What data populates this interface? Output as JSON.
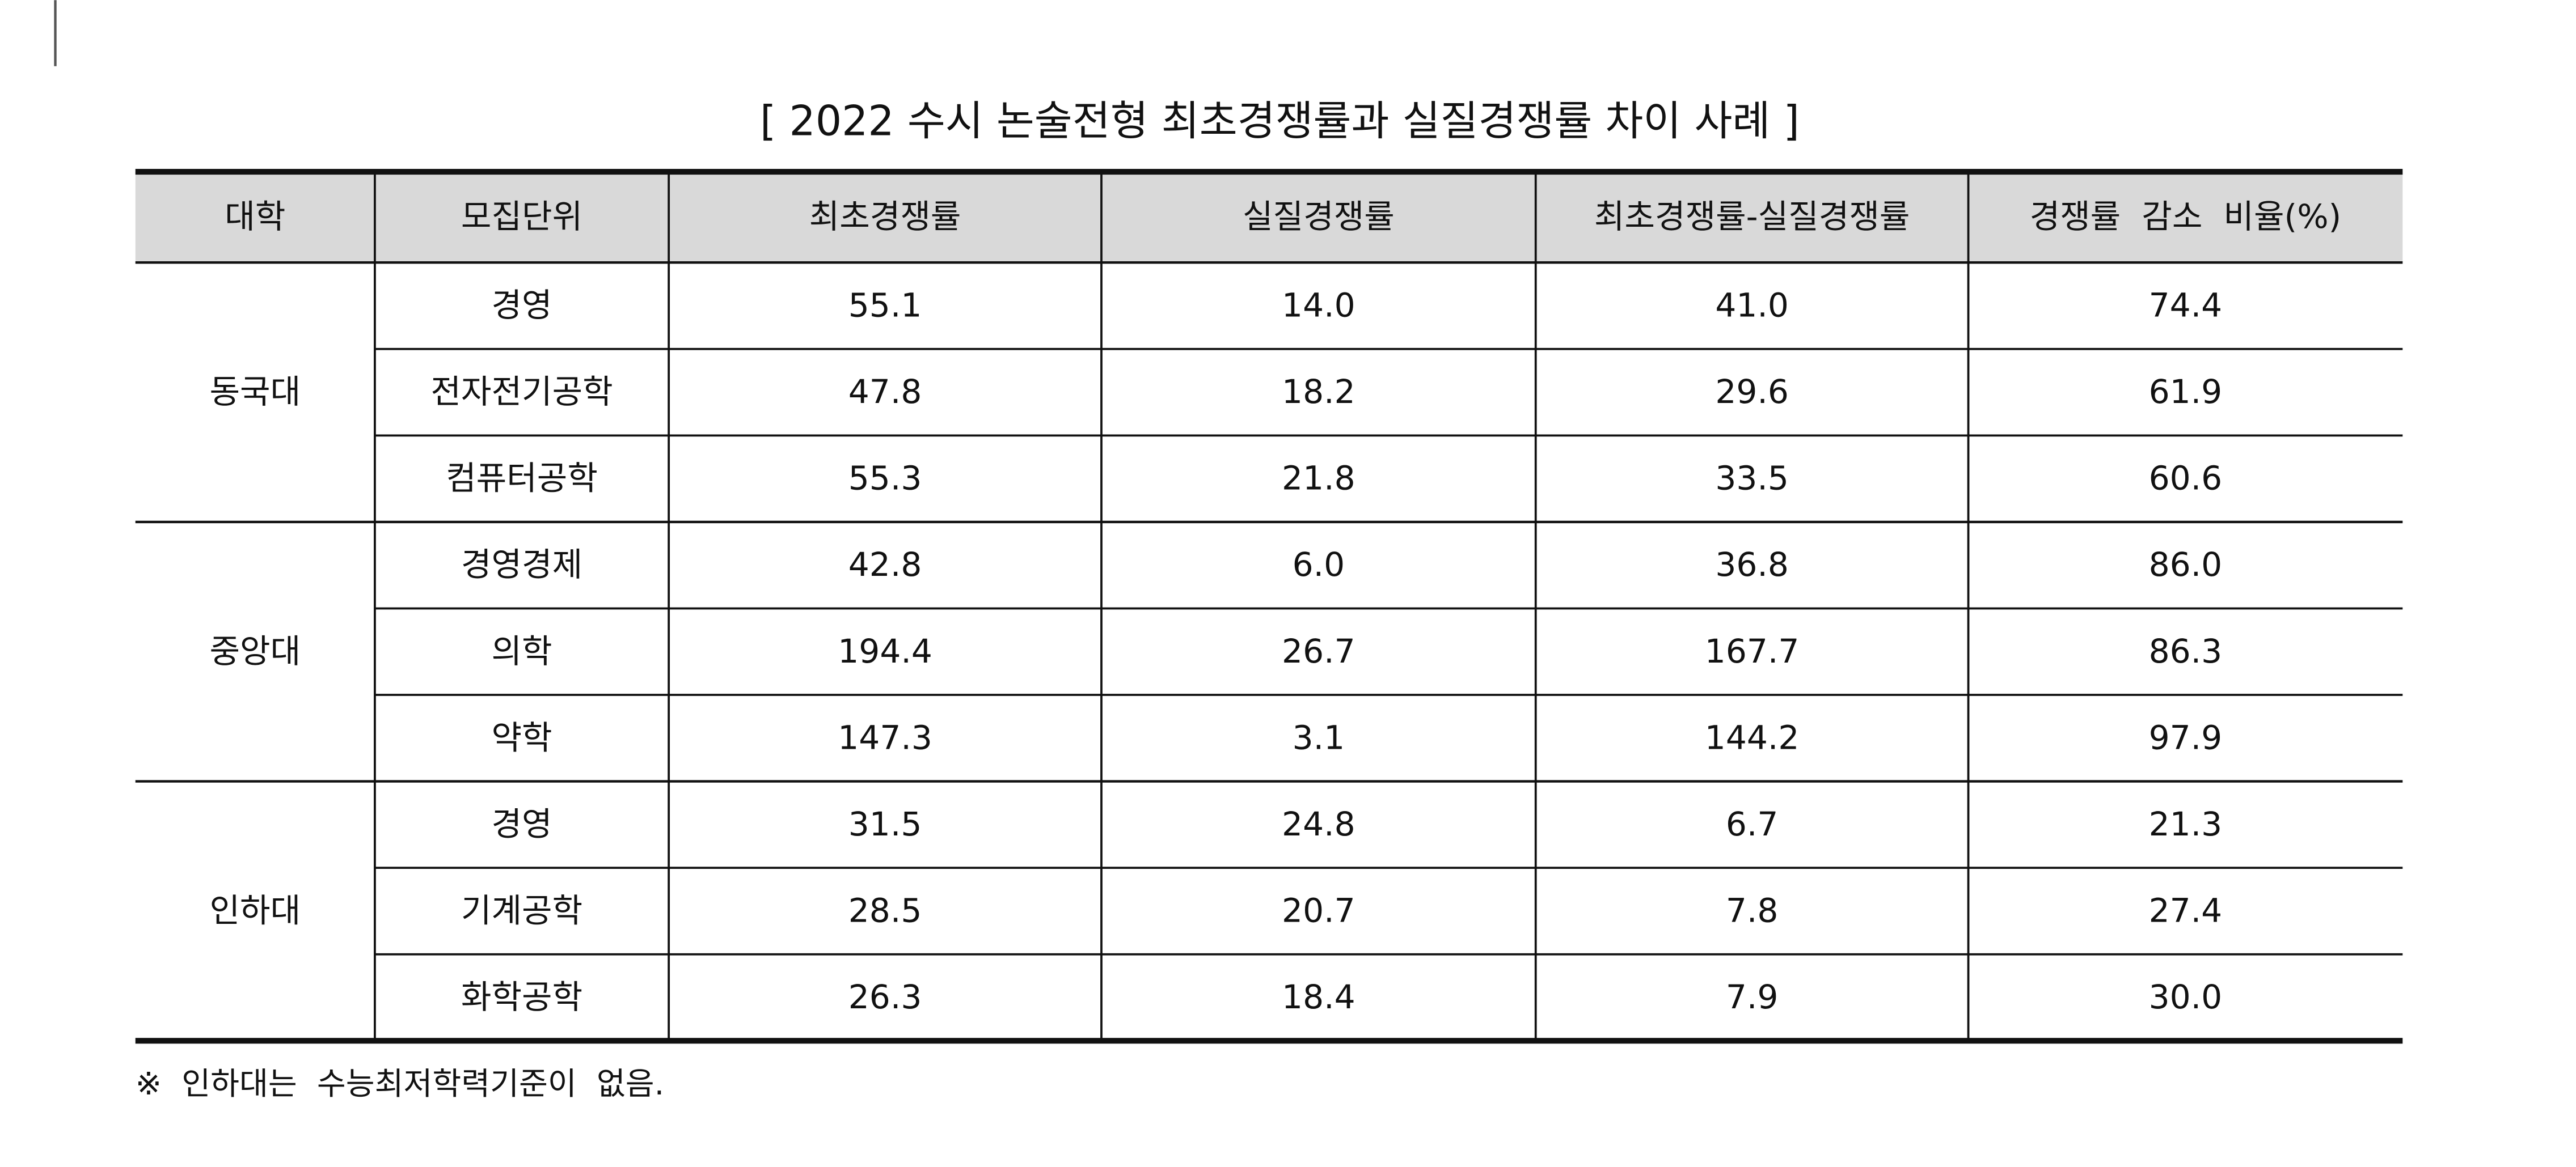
{
  "title": "[ 2022 수시 논술전형 최초경쟁률과 실질경쟁률 차이 사례 ]",
  "table": {
    "header": [
      "대학",
      "모집단위",
      "최초경쟁률",
      "실질경쟁률",
      "최초경쟁률-실질경쟁률",
      "경쟁률  감소  비율(%)"
    ],
    "groups": [
      {
        "university": "동국대",
        "rows": [
          [
            "경영",
            "55.1",
            "14.0",
            "41.0",
            "74.4"
          ],
          [
            "전자전기공학",
            "47.8",
            "18.2",
            "29.6",
            "61.9"
          ],
          [
            "컴퓨터공학",
            "55.3",
            "21.8",
            "33.5",
            "60.6"
          ]
        ]
      },
      {
        "university": "중앙대",
        "rows": [
          [
            "경영경제",
            "42.8",
            "6.0",
            "36.8",
            "86.0"
          ],
          [
            "의학",
            "194.4",
            "26.7",
            "167.7",
            "86.3"
          ],
          [
            "약학",
            "147.3",
            "3.1",
            "144.2",
            "97.9"
          ]
        ]
      },
      {
        "university": "인하대",
        "rows": [
          [
            "경영",
            "31.5",
            "24.8",
            "6.7",
            "21.3"
          ],
          [
            "기계공학",
            "28.5",
            "20.7",
            "7.8",
            "27.4"
          ],
          [
            "화학공학",
            "26.3",
            "18.4",
            "7.9",
            "30.0"
          ]
        ]
      }
    ]
  },
  "footnote": "※  인하대는  수능최저학력기준이  없음."
}
